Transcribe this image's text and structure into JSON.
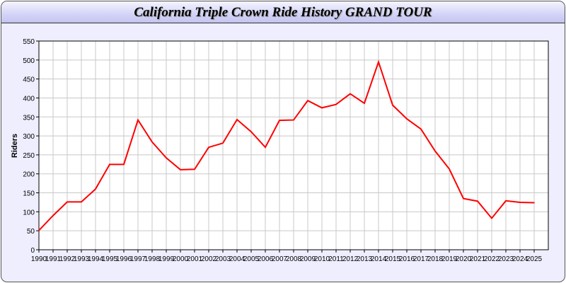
{
  "chart_data": {
    "type": "line",
    "title": "California Triple Crown Ride History GRAND TOUR",
    "xlabel": "",
    "ylabel": "Riders",
    "ylim": [
      0,
      550
    ],
    "yticks": [
      0,
      50,
      100,
      150,
      200,
      250,
      300,
      350,
      400,
      450,
      500,
      550
    ],
    "grid": true,
    "line_color": "#ff0000",
    "x": [
      1990,
      1991,
      1992,
      1993,
      1994,
      1995,
      1996,
      1997,
      1998,
      1999,
      2000,
      2001,
      2002,
      2003,
      2004,
      2005,
      2006,
      2007,
      2008,
      2009,
      2010,
      2011,
      2012,
      2013,
      2014,
      2015,
      2016,
      2017,
      2018,
      2019,
      2020,
      2021,
      2022,
      2023,
      2024,
      2025
    ],
    "values": [
      51,
      90,
      126,
      126,
      160,
      225,
      225,
      342,
      284,
      242,
      211,
      212,
      270,
      281,
      343,
      311,
      270,
      341,
      342,
      393,
      374,
      383,
      411,
      386,
      495,
      381,
      345,
      318,
      260,
      213,
      135,
      128,
      83,
      129,
      125,
      124
    ]
  }
}
